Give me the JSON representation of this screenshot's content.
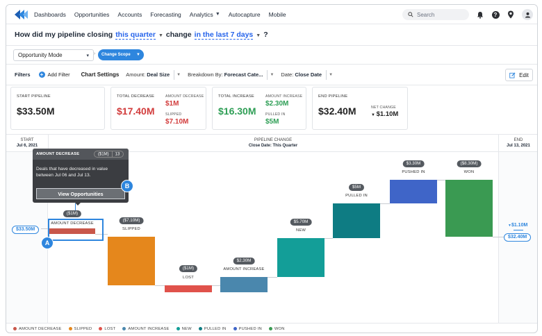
{
  "nav": {
    "items": [
      {
        "label": "Dashboards"
      },
      {
        "label": "Opportunities"
      },
      {
        "label": "Accounts"
      },
      {
        "label": "Forecasting"
      },
      {
        "label": "Analytics"
      },
      {
        "label": "Autocapture"
      },
      {
        "label": "Mobile"
      }
    ],
    "search_placeholder": "Search",
    "help_glyph": "?"
  },
  "question": {
    "prefix": "How did my pipeline closing",
    "period": "this quarter",
    "middle": "change",
    "range": "in the last 7 days",
    "suffix": "?"
  },
  "mode": {
    "select_value": "Opportunity Mode",
    "scope_button": "Change Scope"
  },
  "filters": {
    "label": "Filters",
    "add": "Add Filter",
    "chart_settings": "Chart Settings",
    "amount_label": "Amount:",
    "amount_value": "Deal Size",
    "breakdown_label": "Breakdown By:",
    "breakdown_value": "Forecast Cate...",
    "date_label": "Date:",
    "date_value": "Close Date",
    "edit": "Edit"
  },
  "cards": {
    "start": {
      "title": "START PIPELINE",
      "value": "$33.50M"
    },
    "decrease": {
      "title": "TOTAL DECREASE",
      "value": "$17.40M",
      "sub1_label": "AMOUNT DECREASE",
      "sub1_value": "$1M",
      "sub2_label": "SLIPPED",
      "sub2_value": "$7.10M"
    },
    "increase": {
      "title": "TOTAL INCREASE",
      "value": "$16.30M",
      "sub1_label": "AMOUNT INCREASE",
      "sub1_value": "$2.30M",
      "sub2_label": "PULLED IN",
      "sub2_value": "$5M"
    },
    "end": {
      "title": "END PIPELINE",
      "value": "$32.40M",
      "net_label": "NET CHANGE",
      "net_value": "$1.10M"
    }
  },
  "chart_head": {
    "start_title": "START",
    "start_date": "Jul 6, 2021",
    "mid_title": "PIPELINE CHANGE",
    "mid_sub": "Close Date: This Quarter",
    "end_title": "END",
    "end_date": "Jul 13, 2021"
  },
  "chart_data": {
    "type": "waterfall",
    "start": {
      "label": "$33.50M"
    },
    "end": {
      "label": "$32.40M",
      "net_change": "$1.10M"
    },
    "steps": [
      {
        "name": "AMOUNT DECREASE",
        "value_label": "($1M)",
        "color": "#c9574a"
      },
      {
        "name": "SLIPPED",
        "value_label": "($7.10M)",
        "color": "#e5871c"
      },
      {
        "name": "LOST",
        "value_label": "($1M)",
        "color": "#e0524b"
      },
      {
        "name": "AMOUNT INCREASE",
        "value_label": "$2.30M",
        "color": "#4a87ad"
      },
      {
        "name": "NEW",
        "value_label": "$5.70M",
        "color": "#139e98"
      },
      {
        "name": "PULLED IN",
        "value_label": "$5M",
        "color": "#0e7c83"
      },
      {
        "name": "PUSHED IN",
        "value_label": "$3.30M",
        "color": "#3f65c8"
      },
      {
        "name": "WON",
        "value_label": "($8.30M)",
        "color": "#3a9a52"
      }
    ]
  },
  "tooltip": {
    "title": "AMOUNT DECREASE",
    "value": "($1M)",
    "count": "13",
    "body": "Deals that have decreased in value between Jul 06 and Jul 13.",
    "button": "View Opportunities"
  },
  "markers": {
    "a": "A",
    "b": "B"
  },
  "legend": [
    {
      "name": "AMOUNT DECREASE",
      "color": "#c9574a"
    },
    {
      "name": "SLIPPED",
      "color": "#e5871c"
    },
    {
      "name": "LOST",
      "color": "#e0524b"
    },
    {
      "name": "AMOUNT INCREASE",
      "color": "#4a87ad"
    },
    {
      "name": "NEW",
      "color": "#139e98"
    },
    {
      "name": "PULLED IN",
      "color": "#0e7c83"
    },
    {
      "name": "PUSHED IN",
      "color": "#3f65c8"
    },
    {
      "name": "WON",
      "color": "#3a9a52"
    }
  ]
}
